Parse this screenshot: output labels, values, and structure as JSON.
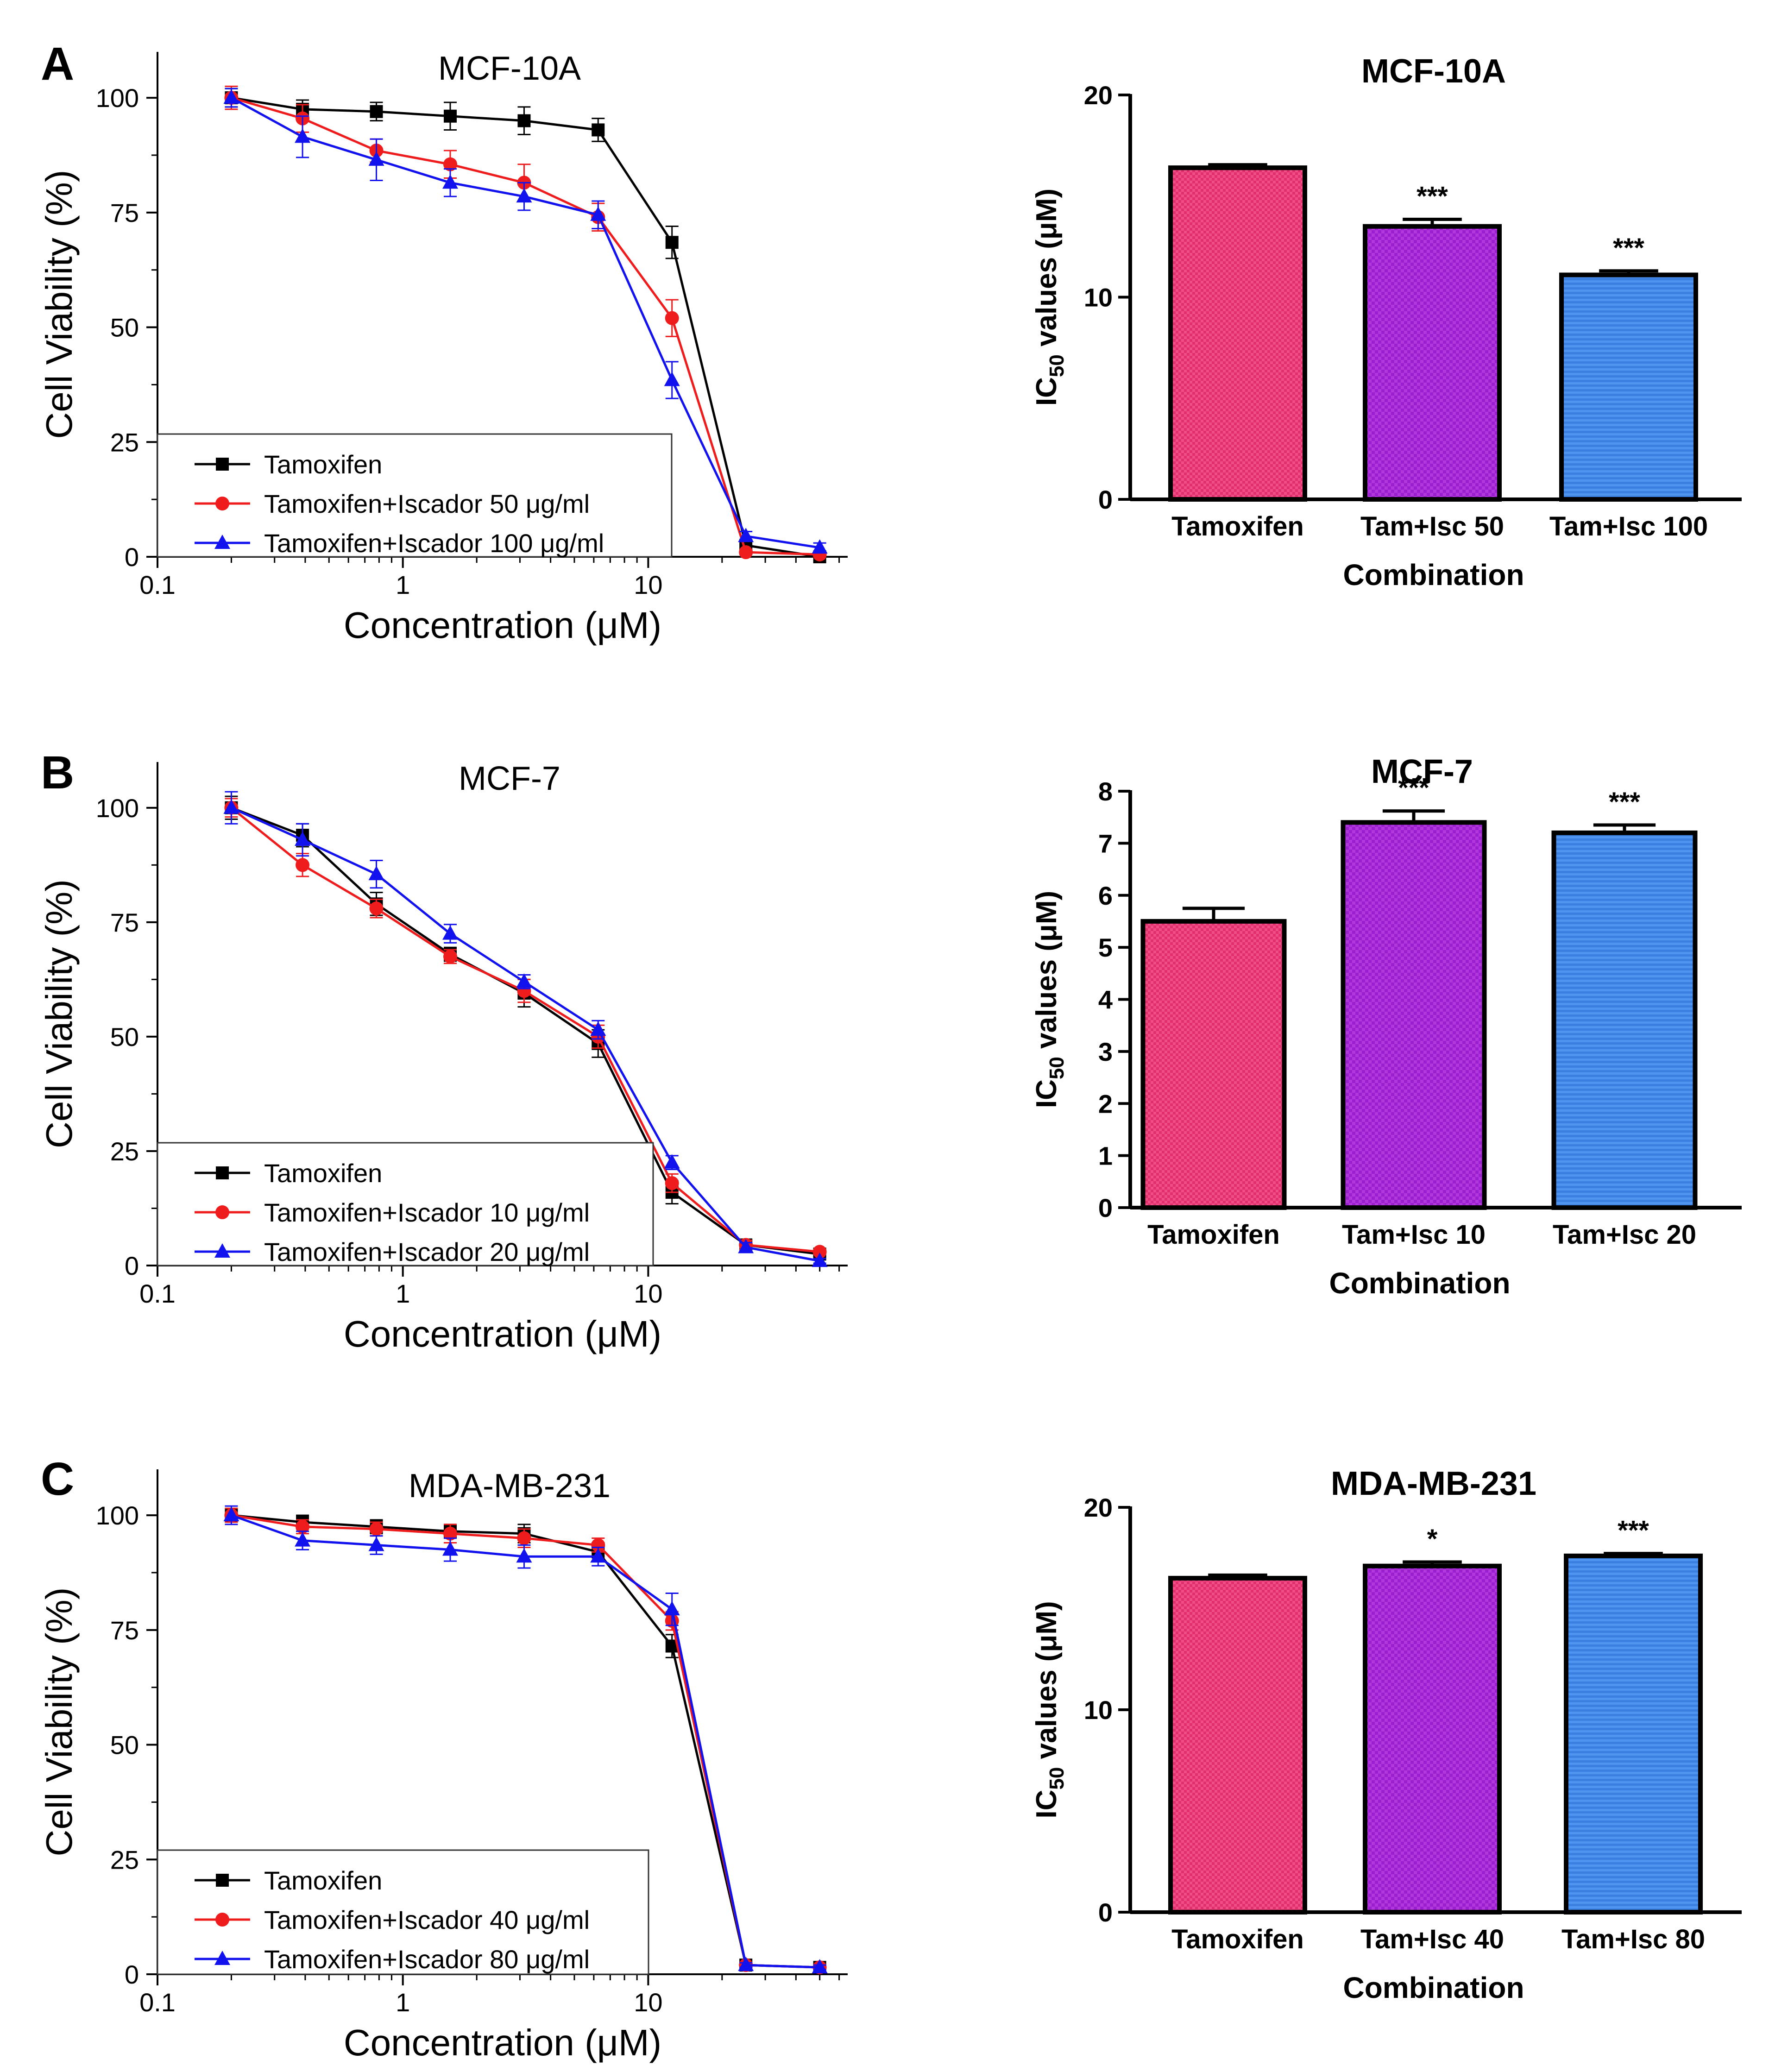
{
  "figure": {
    "panels": [
      {
        "letter": "A"
      },
      {
        "letter": "B"
      },
      {
        "letter": "C"
      }
    ]
  },
  "colors": {
    "tamoxifen_line": "#000000",
    "combo_low_line": "#ee1c1c",
    "combo_high_line": "#1212ee",
    "bar_tamoxifen": "#ef4f86",
    "bar_low": "#b238dc",
    "bar_high": "#4f94ee"
  },
  "chart_data": [
    {
      "id": "A-viability",
      "type": "line",
      "title": "MCF-10A",
      "xlabel": "Concentration (μM)",
      "ylabel": "Cell Viability (%)",
      "xscale": "log",
      "xlim": [
        0.1,
        65
      ],
      "ylim": [
        0,
        110
      ],
      "xticks": [
        0.1,
        1,
        10
      ],
      "xtick_labels": [
        "0.1",
        "1",
        "10"
      ],
      "yticks": [
        0,
        25,
        50,
        75,
        100
      ],
      "ytick_labels": [
        "0",
        "25",
        "50",
        "75",
        "100"
      ],
      "legend_position": "bottom-left",
      "x": [
        0.2,
        0.39,
        0.78,
        1.56,
        3.12,
        6.25,
        12.5,
        25,
        50
      ],
      "series": [
        {
          "name": "Tamoxifen",
          "color": "#000000",
          "marker": "square",
          "values": [
            100,
            97.5,
            97,
            96,
            95,
            93,
            68.5,
            2.5,
            0
          ],
          "errors": [
            2,
            2,
            2,
            3,
            3,
            2.5,
            3.5,
            1,
            0.5
          ]
        },
        {
          "name": "Tamoxifen+Iscador 50 μg/ml",
          "color": "#ee1c1c",
          "marker": "circle",
          "values": [
            100,
            95.5,
            88.5,
            85.5,
            81.5,
            74,
            52,
            1,
            0.5
          ],
          "errors": [
            2.5,
            3,
            2.5,
            3,
            4,
            3,
            4,
            0.5,
            0.5
          ]
        },
        {
          "name": "Tamoxifen+Iscador 100 μg/ml",
          "color": "#1212ee",
          "marker": "triangle",
          "values": [
            100,
            91.5,
            86.5,
            81.5,
            78.5,
            74.5,
            38.5,
            4.5,
            2
          ],
          "errors": [
            2,
            4.5,
            4.5,
            3,
            3,
            3,
            4,
            1,
            1
          ]
        }
      ]
    },
    {
      "id": "A-ic50",
      "type": "bar",
      "title": "MCF-10A",
      "xlabel": "Combination",
      "ylabel_pre": "IC",
      "ylabel_sub": "50",
      "ylabel_post": " values (μM)",
      "ylim": [
        0,
        20
      ],
      "yticks": [
        0,
        10,
        20
      ],
      "ytick_labels": [
        "0",
        "10",
        "20"
      ],
      "categories": [
        "Tamoxifen",
        "Tam+Isc 50",
        "Tam+Isc 100"
      ],
      "values": [
        16.4,
        13.5,
        11.1
      ],
      "errors": [
        0.15,
        0.35,
        0.2
      ],
      "significance": [
        "",
        "***",
        "***"
      ]
    },
    {
      "id": "B-viability",
      "type": "line",
      "title": "MCF-7",
      "xlabel": "Concentration (μM)",
      "ylabel": "Cell Viability (%)",
      "xscale": "log",
      "xlim": [
        0.1,
        65
      ],
      "ylim": [
        0,
        110
      ],
      "xticks": [
        0.1,
        1,
        10
      ],
      "xtick_labels": [
        "0.1",
        "1",
        "10"
      ],
      "yticks": [
        0,
        25,
        50,
        75,
        100
      ],
      "ytick_labels": [
        "0",
        "25",
        "50",
        "75",
        "100"
      ],
      "legend_position": "bottom-left",
      "x": [
        0.2,
        0.39,
        0.78,
        1.56,
        3.12,
        6.25,
        12.5,
        25,
        50
      ],
      "series": [
        {
          "name": "Tamoxifen",
          "color": "#000000",
          "marker": "square",
          "values": [
            100,
            94,
            79,
            68,
            59.5,
            48.5,
            16,
            4.5,
            2.5
          ],
          "errors": [
            2.5,
            2.5,
            2.5,
            1.5,
            3,
            3,
            2.5,
            1,
            0.5
          ]
        },
        {
          "name": "Tamoxifen+Iscador 10 μg/ml",
          "color": "#ee1c1c",
          "marker": "circle",
          "values": [
            100,
            87.5,
            78,
            67.5,
            60,
            50,
            18,
            4.5,
            3
          ],
          "errors": [
            2,
            2.5,
            2,
            1.5,
            2.5,
            2.5,
            2,
            1,
            0.5
          ]
        },
        {
          "name": "Tamoxifen+Iscador 20 μg/ml",
          "color": "#1212ee",
          "marker": "triangle",
          "values": [
            100,
            93,
            85.5,
            72.5,
            62,
            51.5,
            22.5,
            4,
            1
          ],
          "errors": [
            3.5,
            3.5,
            3,
            2,
            1.5,
            2,
            1.5,
            1,
            0.5
          ]
        }
      ]
    },
    {
      "id": "B-ic50",
      "type": "bar",
      "title": "MCF-7",
      "xlabel": "Combination",
      "ylabel_pre": "IC",
      "ylabel_sub": "50",
      "ylabel_post": " values (μM)",
      "ylim": [
        0,
        8
      ],
      "yticks": [
        0,
        1,
        2,
        3,
        4,
        5,
        6,
        7,
        8
      ],
      "ytick_labels": [
        "0",
        "1",
        "2",
        "3",
        "4",
        "5",
        "6",
        "7",
        "8"
      ],
      "categories": [
        "Tamoxifen",
        "Tam+Isc 10",
        "Tam+Isc 20"
      ],
      "values": [
        5.5,
        7.4,
        7.2
      ],
      "errors": [
        0.25,
        0.22,
        0.15
      ],
      "significance": [
        "",
        "***",
        "***"
      ]
    },
    {
      "id": "C-viability",
      "type": "line",
      "title": "MDA-MB-231",
      "xlabel": "Concentration (μM)",
      "ylabel": "Cell Viability (%)",
      "xscale": "log",
      "xlim": [
        0.1,
        65
      ],
      "ylim": [
        0,
        110
      ],
      "xticks": [
        0.1,
        1,
        10
      ],
      "xtick_labels": [
        "0.1",
        "1",
        "10"
      ],
      "yticks": [
        0,
        25,
        50,
        75,
        100
      ],
      "ytick_labels": [
        "0",
        "25",
        "50",
        "75",
        "100"
      ],
      "legend_position": "bottom-left",
      "x": [
        0.2,
        0.39,
        0.78,
        1.56,
        3.12,
        6.25,
        12.5,
        25,
        50
      ],
      "series": [
        {
          "name": "Tamoxifen",
          "color": "#000000",
          "marker": "square",
          "values": [
            100,
            98.5,
            97.5,
            96.5,
            96,
            92,
            71.5,
            2,
            1.5
          ],
          "errors": [
            1.5,
            1.5,
            1.5,
            1.5,
            2,
            2,
            2.5,
            0.5,
            0.5
          ]
        },
        {
          "name": "Tamoxifen+Iscador 40 μg/ml",
          "color": "#ee1c1c",
          "marker": "circle",
          "values": [
            100,
            97.5,
            97,
            96,
            95,
            93.5,
            77,
            2,
            1.5
          ],
          "errors": [
            1.5,
            1.5,
            1.5,
            2,
            2,
            1.5,
            2,
            0.5,
            0.5
          ]
        },
        {
          "name": "Tamoxifen+Iscador 80 μg/ml",
          "color": "#1212ee",
          "marker": "triangle",
          "values": [
            100,
            94.5,
            93.5,
            92.5,
            91,
            91,
            79.5,
            2,
            1.5
          ],
          "errors": [
            2,
            2,
            2,
            2.5,
            2.5,
            2,
            3.5,
            0.5,
            0.5
          ]
        }
      ]
    },
    {
      "id": "C-ic50",
      "type": "bar",
      "title": "MDA-MB-231",
      "xlabel": "Combination",
      "ylabel_pre": "IC",
      "ylabel_sub": "50",
      "ylabel_post": " values (μM)",
      "ylim": [
        0,
        20
      ],
      "yticks": [
        0,
        10,
        20
      ],
      "ytick_labels": [
        "0",
        "10",
        "20"
      ],
      "categories": [
        "Tamoxifen",
        "Tam+Isc 40",
        "Tam+Isc 80"
      ],
      "values": [
        16.5,
        17.1,
        17.6
      ],
      "errors": [
        0.15,
        0.2,
        0.12
      ],
      "significance": [
        "",
        "*",
        "***"
      ]
    }
  ]
}
